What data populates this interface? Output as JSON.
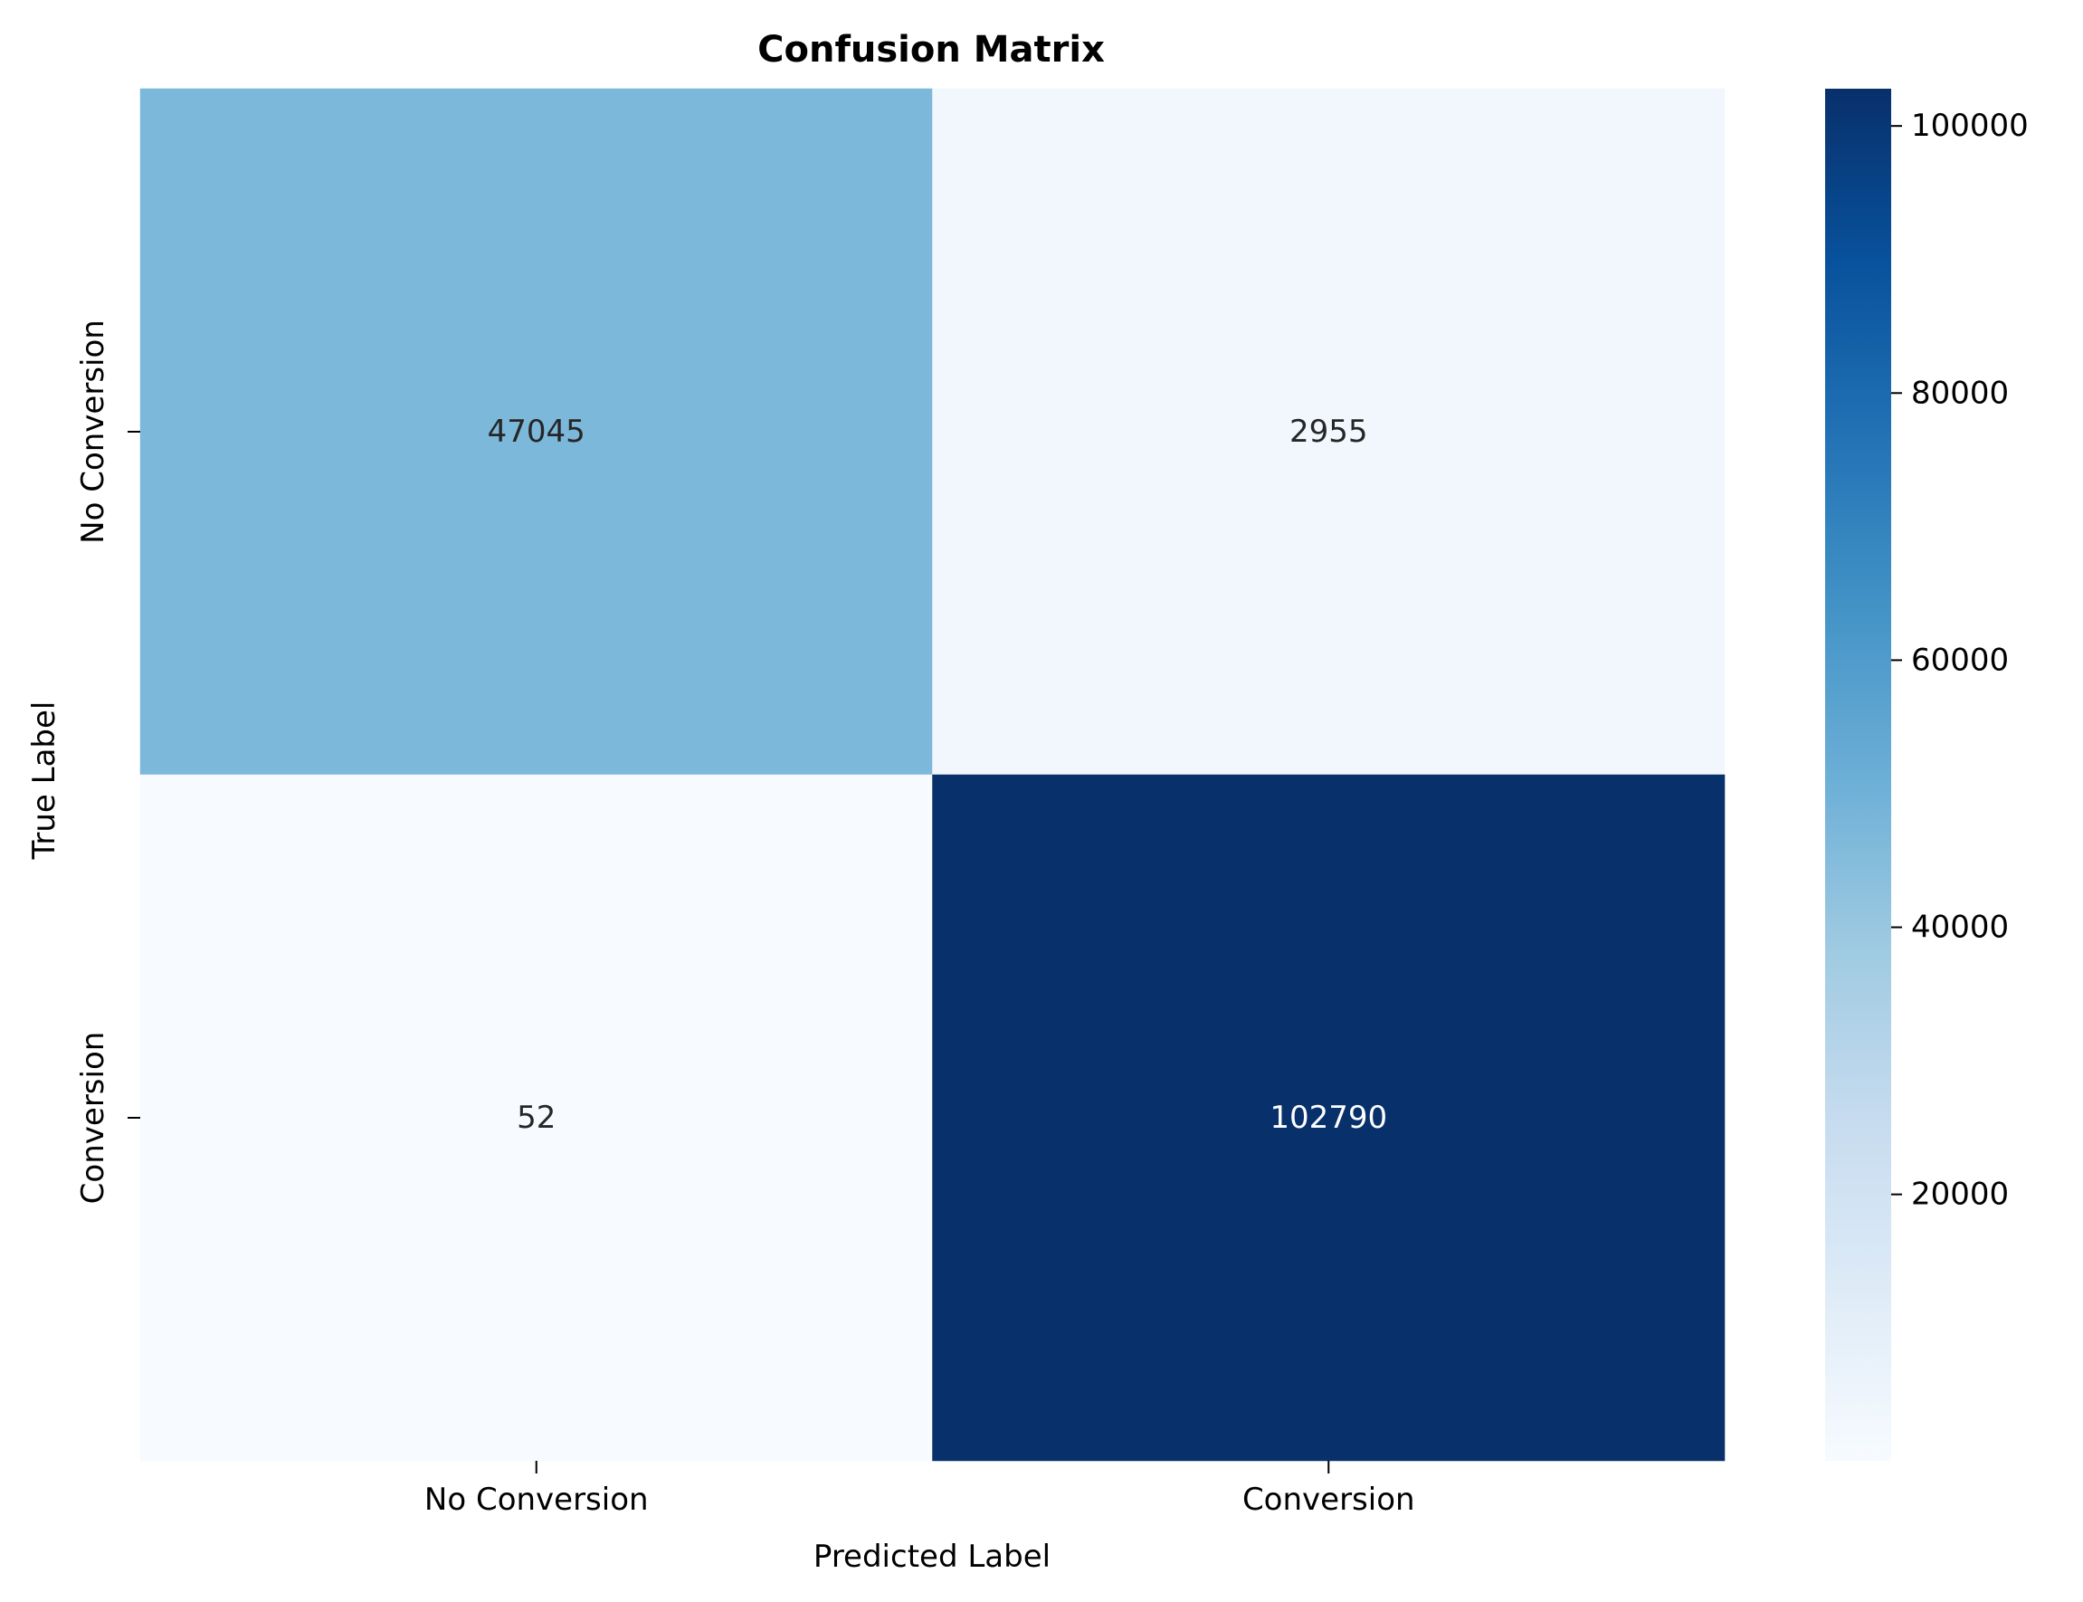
{
  "chart_data": {
    "type": "heatmap",
    "title": "Confusion Matrix",
    "xlabel": "Predicted Label",
    "ylabel": "True Label",
    "x_categories": [
      "No Conversion",
      "Conversion"
    ],
    "y_categories": [
      "No Conversion",
      "Conversion"
    ],
    "values": [
      [
        47045,
        2955
      ],
      [
        52,
        102790
      ]
    ],
    "colormap": "Blues",
    "color_range": [
      52,
      102790
    ],
    "colorbar": {
      "ticks": [
        20000,
        40000,
        60000,
        80000,
        100000
      ],
      "tick_labels": [
        "20000",
        "40000",
        "60000",
        "80000",
        "100000"
      ]
    },
    "annotation_colors": {
      "dark_text": "#262626",
      "light_text": "#ffffff"
    },
    "colors": {
      "axis": "#000000",
      "background": "#ffffff"
    }
  }
}
